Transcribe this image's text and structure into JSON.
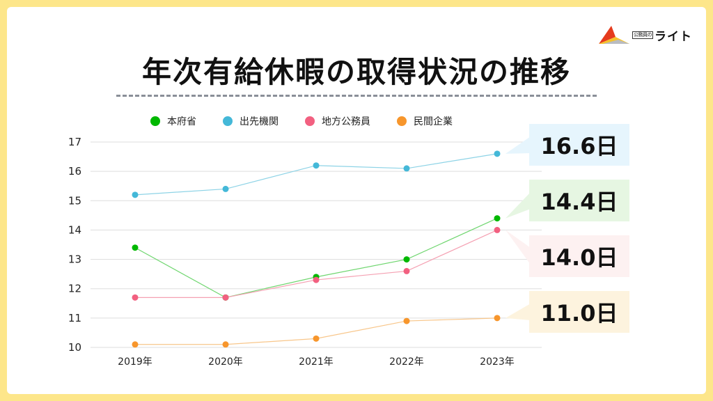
{
  "brand": {
    "logo_sub": "公務員の",
    "logo_main": "ライト"
  },
  "title": "年次有給休暇の取得状況の推移",
  "colors": {
    "background": "#fde68a",
    "card": "#ffffff",
    "grid": "#dddddd"
  },
  "chart_data": {
    "type": "line",
    "title": "年次有給休暇の取得状況の推移",
    "xlabel": "",
    "ylabel": "",
    "categories": [
      "2019年",
      "2020年",
      "2021年",
      "2022年",
      "2023年"
    ],
    "ylim": [
      10,
      17
    ],
    "yticks": [
      10,
      11,
      12,
      13,
      14,
      15,
      16,
      17
    ],
    "grid": true,
    "legend_position": "top",
    "series": [
      {
        "name": "本府省",
        "color": "#00b800",
        "line_color": "#6fd66f",
        "values": [
          13.4,
          11.7,
          12.4,
          13.0,
          14.4
        ]
      },
      {
        "name": "出先機関",
        "color": "#44b8d8",
        "line_color": "#8dd3e6",
        "values": [
          15.2,
          15.4,
          16.2,
          16.1,
          16.6
        ]
      },
      {
        "name": "地方公務員",
        "color": "#f26080",
        "line_color": "#f5a0b2",
        "values": [
          11.7,
          11.7,
          12.3,
          12.6,
          14.0
        ]
      },
      {
        "name": "民間企業",
        "color": "#f7962c",
        "line_color": "#f8c68a",
        "values": [
          10.1,
          10.1,
          10.3,
          10.9,
          11.0
        ]
      }
    ],
    "annotations": [
      {
        "series": "出先機関",
        "text": "16.6日",
        "bg": "#e6f5fd"
      },
      {
        "series": "本府省",
        "text": "14.4日",
        "bg": "#e6f6e2"
      },
      {
        "series": "地方公務員",
        "text": "14.0日",
        "bg": "#fdf1f1"
      },
      {
        "series": "民間企業",
        "text": "11.0日",
        "bg": "#fdf3de"
      }
    ]
  }
}
